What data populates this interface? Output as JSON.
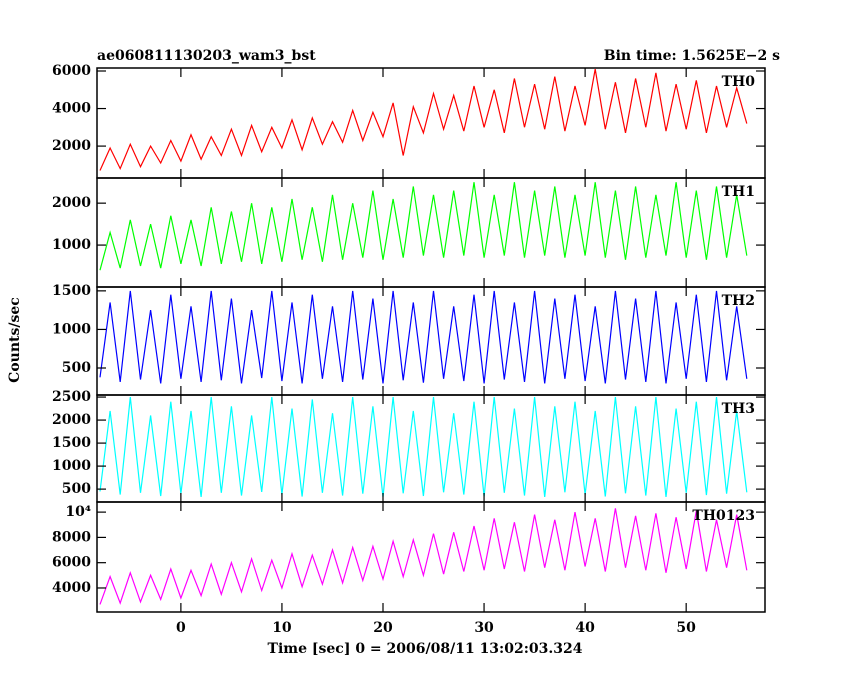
{
  "title": "ae060811130203_wam3_bst",
  "subtitle": "Bin time: 1.5625E−2 s",
  "y_label": "Counts/sec",
  "x_label": "Time [sec] 0 = 2006/08/11 13:02:03.324",
  "chart_data": [
    {
      "type": "line",
      "label": "TH0",
      "color": "#ff0000",
      "ylim": [
        300,
        6160
      ],
      "yticks": [
        2000,
        4000,
        6000
      ],
      "x": [
        -8,
        -7,
        -6,
        -5,
        -4,
        -3,
        -2,
        -1,
        0,
        1,
        2,
        3,
        4,
        5,
        6,
        7,
        8,
        9,
        10,
        11,
        12,
        13,
        14,
        15,
        16,
        17,
        18,
        19,
        20,
        21,
        22,
        23,
        24,
        25,
        26,
        27,
        28,
        29,
        30,
        31,
        32,
        33,
        34,
        35,
        36,
        37,
        38,
        39,
        40,
        41,
        42,
        43,
        44,
        45,
        46,
        47,
        48,
        49,
        50,
        51,
        52,
        53,
        54,
        55,
        56
      ],
      "values": [
        700,
        1900,
        800,
        2100,
        900,
        2000,
        1100,
        2300,
        1200,
        2600,
        1300,
        2500,
        1500,
        2900,
        1500,
        3100,
        1700,
        3000,
        1900,
        3400,
        1800,
        3500,
        2100,
        3300,
        2200,
        3900,
        2300,
        3800,
        2500,
        4300,
        1500,
        4100,
        2700,
        4800,
        2900,
        4700,
        2800,
        5200,
        3000,
        5000,
        2700,
        5600,
        3000,
        5300,
        2900,
        5700,
        2800,
        5200,
        3100,
        6100,
        2900,
        5400,
        2700,
        5600,
        3000,
        5900,
        2800,
        5300,
        2900,
        5500,
        2700,
        5200,
        3000,
        5100,
        3200
      ]
    },
    {
      "type": "line",
      "label": "TH1",
      "color": "#00ff00",
      "ylim": [
        0,
        2600
      ],
      "yticks": [
        1000,
        2000
      ],
      "values": [
        400,
        1300,
        450,
        1600,
        500,
        1500,
        450,
        1700,
        550,
        1600,
        500,
        1900,
        550,
        1800,
        600,
        2000,
        550,
        1900,
        600,
        2100,
        650,
        1900,
        600,
        2200,
        650,
        2000,
        700,
        2300,
        650,
        2100,
        700,
        2400,
        750,
        2200,
        700,
        2300,
        750,
        2500,
        700,
        2200,
        750,
        2500,
        700,
        2300,
        750,
        2400,
        700,
        2200,
        750,
        2500,
        700,
        2300,
        650,
        2400,
        700,
        2200,
        750,
        2500,
        700,
        2300,
        650,
        2400,
        700,
        2200,
        750
      ]
    },
    {
      "type": "line",
      "label": "TH2",
      "color": "#0000ff",
      "ylim": [
        150,
        1550
      ],
      "yticks": [
        500,
        1000,
        1500
      ],
      "values": [
        380,
        1350,
        320,
        1500,
        350,
        1250,
        300,
        1450,
        360,
        1300,
        320,
        1500,
        340,
        1400,
        300,
        1250,
        370,
        1500,
        330,
        1350,
        300,
        1450,
        360,
        1300,
        320,
        1500,
        350,
        1400,
        300,
        1500,
        340,
        1350,
        310,
        1500,
        360,
        1300,
        330,
        1450,
        300,
        1500,
        350,
        1350,
        320,
        1500,
        300,
        1400,
        360,
        1450,
        330,
        1300,
        300,
        1500,
        350,
        1400,
        320,
        1500,
        300,
        1350,
        360,
        1450,
        320,
        1500,
        340,
        1300,
        360
      ]
    },
    {
      "type": "line",
      "label": "TH3",
      "color": "#00ffff",
      "ylim": [
        220,
        2545
      ],
      "yticks": [
        500,
        1000,
        1500,
        2000,
        2500
      ],
      "values": [
        450,
        2200,
        380,
        2500,
        420,
        2100,
        350,
        2400,
        400,
        2200,
        330,
        2500,
        420,
        2300,
        360,
        2100,
        440,
        2500,
        380,
        2250,
        340,
        2450,
        420,
        2150,
        360,
        2500,
        400,
        2300,
        330,
        2500,
        410,
        2200,
        350,
        2500,
        430,
        2150,
        380,
        2400,
        340,
        2500,
        420,
        2250,
        360,
        2500,
        330,
        2300,
        430,
        2400,
        380,
        2200,
        340,
        2500,
        410,
        2300,
        360,
        2500,
        330,
        2250,
        420,
        2400,
        370,
        2500,
        400,
        2200,
        430
      ]
    },
    {
      "type": "line",
      "label": "TH0123",
      "color": "#ff00ff",
      "ylim": [
        2100,
        10800
      ],
      "yticks": [
        4000,
        6000,
        8000,
        {
          "value": 10000,
          "label": "10⁴"
        }
      ],
      "xlim": [
        -8.3,
        57.8
      ],
      "xticks": [
        0,
        10,
        20,
        30,
        40,
        50
      ],
      "values": [
        2700,
        4900,
        2800,
        5200,
        2900,
        5000,
        3100,
        5500,
        3200,
        5400,
        3400,
        5900,
        3500,
        6000,
        3700,
        6300,
        3800,
        6200,
        4000,
        6700,
        4100,
        6600,
        4300,
        7000,
        4400,
        7200,
        4600,
        7300,
        4700,
        7700,
        4900,
        7800,
        5000,
        8300,
        5100,
        8400,
        5300,
        8900,
        5400,
        9500,
        5500,
        9200,
        5300,
        9800,
        5600,
        9400,
        5400,
        10000,
        5700,
        9500,
        5300,
        10300,
        5600,
        9700,
        5400,
        9900,
        5200,
        9600,
        5500,
        10100,
        5300,
        9400,
        5600,
        9800,
        5400
      ]
    }
  ]
}
